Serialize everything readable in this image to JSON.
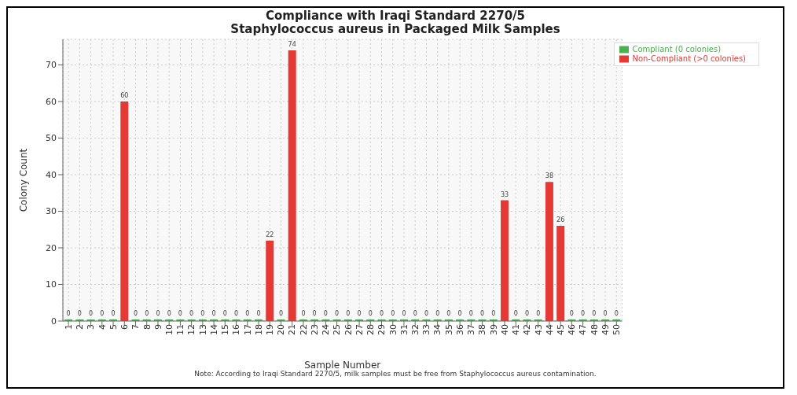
{
  "chart_data": {
    "type": "bar",
    "title": "Compliance with Iraqi Standard 2270/5\nStaphylococcus aureus in Packaged Milk Samples",
    "xlabel": "Sample Number",
    "ylabel": "Colony Count",
    "categories": [
      "1",
      "2",
      "3",
      "4",
      "5",
      "6",
      "7",
      "8",
      "9",
      "10",
      "11",
      "12",
      "13",
      "14",
      "15",
      "16",
      "17",
      "18",
      "19",
      "20",
      "21",
      "22",
      "23",
      "24",
      "25",
      "26",
      "27",
      "28",
      "29",
      "30",
      "31",
      "32",
      "33",
      "34",
      "35",
      "36",
      "37",
      "38",
      "39",
      "40",
      "41",
      "42",
      "43",
      "44",
      "45",
      "46",
      "47",
      "48",
      "49",
      "50"
    ],
    "series": [
      {
        "name": "Compliant (0 colonies)",
        "color": "#4caf50",
        "values": [
          0,
          0,
          0,
          0,
          0,
          null,
          0,
          0,
          0,
          0,
          0,
          0,
          0,
          0,
          0,
          0,
          0,
          0,
          null,
          0,
          null,
          0,
          0,
          0,
          0,
          0,
          0,
          0,
          0,
          0,
          0,
          0,
          0,
          0,
          0,
          0,
          0,
          0,
          0,
          null,
          0,
          0,
          0,
          null,
          null,
          0,
          0,
          0,
          0,
          0
        ]
      },
      {
        "name": "Non-Compliant (>0 colonies)",
        "color": "#e53935",
        "values": [
          null,
          null,
          null,
          null,
          null,
          60,
          null,
          null,
          null,
          null,
          null,
          null,
          null,
          null,
          null,
          null,
          null,
          null,
          22,
          null,
          74,
          null,
          null,
          null,
          null,
          null,
          null,
          null,
          null,
          null,
          null,
          null,
          null,
          null,
          null,
          null,
          null,
          null,
          null,
          33,
          null,
          null,
          null,
          38,
          26,
          null,
          null,
          null,
          null,
          null
        ]
      }
    ],
    "stacked": true,
    "ylim": [
      0,
      77
    ],
    "yticks": [
      0,
      10,
      20,
      30,
      40,
      50,
      60,
      70
    ],
    "grid": true,
    "legend": "top right",
    "data_labels": true,
    "annotations": [
      "Note: According to Iraqi Standard 2270/5, milk samples must be free from Staphylococcus aureus contamination."
    ]
  }
}
